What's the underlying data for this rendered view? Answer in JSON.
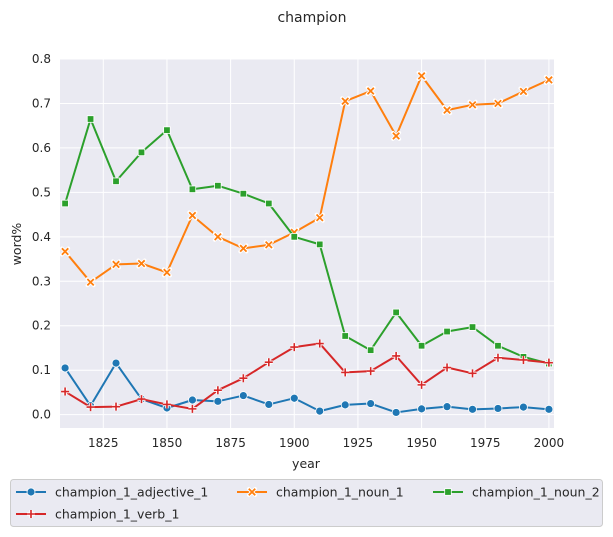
{
  "chart_data": {
    "type": "line",
    "title": "champion",
    "xlabel": "year",
    "ylabel": "word%",
    "xlim": [
      1808,
      2002
    ],
    "ylim": [
      -0.03,
      0.8
    ],
    "x_ticks": [
      1825,
      1850,
      1875,
      1900,
      1925,
      1950,
      1975,
      2000
    ],
    "y_ticks": [
      0.0,
      0.1,
      0.2,
      0.3,
      0.4,
      0.5,
      0.6,
      0.7,
      0.8
    ],
    "x_tick_labels": [
      "1825",
      "1850",
      "1875",
      "1900",
      "1925",
      "1950",
      "1975",
      "2000"
    ],
    "y_tick_labels": [
      "0.0",
      "0.1",
      "0.2",
      "0.3",
      "0.4",
      "0.5",
      "0.6",
      "0.7",
      "0.8"
    ],
    "grid": true,
    "legend_position": "bottom",
    "x": [
      1810,
      1820,
      1830,
      1840,
      1850,
      1860,
      1870,
      1880,
      1890,
      1900,
      1910,
      1920,
      1930,
      1940,
      1950,
      1960,
      1970,
      1980,
      1990,
      2000
    ],
    "series": [
      {
        "name": "champion_1_adjective_1",
        "color": "#1f77b4",
        "marker": "circle",
        "values": [
          0.105,
          0.02,
          0.116,
          0.035,
          0.015,
          0.033,
          0.03,
          0.043,
          0.023,
          0.037,
          0.008,
          0.022,
          0.025,
          0.005,
          0.013,
          0.018,
          0.012,
          0.014,
          0.017,
          0.012
        ]
      },
      {
        "name": "champion_1_noun_1",
        "color": "#ff7f0e",
        "marker": "x",
        "values": [
          0.367,
          0.298,
          0.338,
          0.34,
          0.32,
          0.448,
          0.4,
          0.374,
          0.382,
          0.41,
          0.443,
          0.705,
          0.728,
          0.627,
          0.762,
          0.685,
          0.697,
          0.7,
          0.727,
          0.753
        ]
      },
      {
        "name": "champion_1_noun_2",
        "color": "#2ca02c",
        "marker": "square",
        "values": [
          0.475,
          0.665,
          0.525,
          0.59,
          0.64,
          0.507,
          0.515,
          0.497,
          0.475,
          0.4,
          0.383,
          0.177,
          0.145,
          0.23,
          0.155,
          0.187,
          0.197,
          0.155,
          0.13,
          0.115
        ]
      },
      {
        "name": "champion_1_verb_1",
        "color": "#d62728",
        "marker": "plus",
        "values": [
          0.052,
          0.017,
          0.018,
          0.035,
          0.023,
          0.013,
          0.055,
          0.082,
          0.118,
          0.152,
          0.16,
          0.095,
          0.098,
          0.132,
          0.067,
          0.106,
          0.093,
          0.128,
          0.123,
          0.117
        ]
      }
    ]
  }
}
